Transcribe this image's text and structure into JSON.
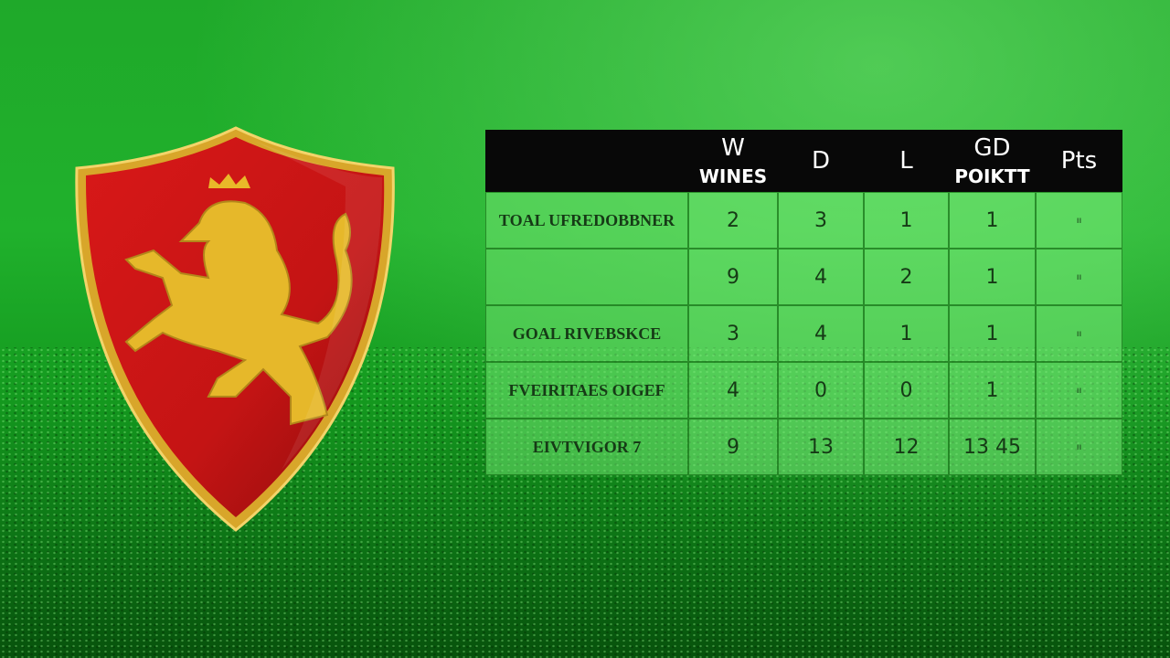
{
  "table": {
    "header": [
      {
        "label": "W",
        "sub": "WINES"
      },
      {
        "label": "D"
      },
      {
        "label": "L"
      },
      {
        "label": "GD",
        "sub": "POIKTT"
      },
      {
        "label": "Pts"
      }
    ],
    "rows": [
      [
        "TOAL UFREDOBBNER",
        "2",
        "3",
        "1",
        "1",
        "ıı"
      ],
      [
        null,
        "9",
        "4",
        "2",
        "1",
        "ıı"
      ],
      [
        "GOAL RIVEBSKCE",
        "3",
        "4",
        "1",
        "1",
        "ıı"
      ],
      [
        "FVEIRITAES OIGEF",
        "4",
        "0",
        "0",
        "1",
        "ıı"
      ],
      [
        "EIVTVIGOR 7",
        "9",
        "13",
        "12",
        "13 45",
        "ıı"
      ]
    ]
  }
}
